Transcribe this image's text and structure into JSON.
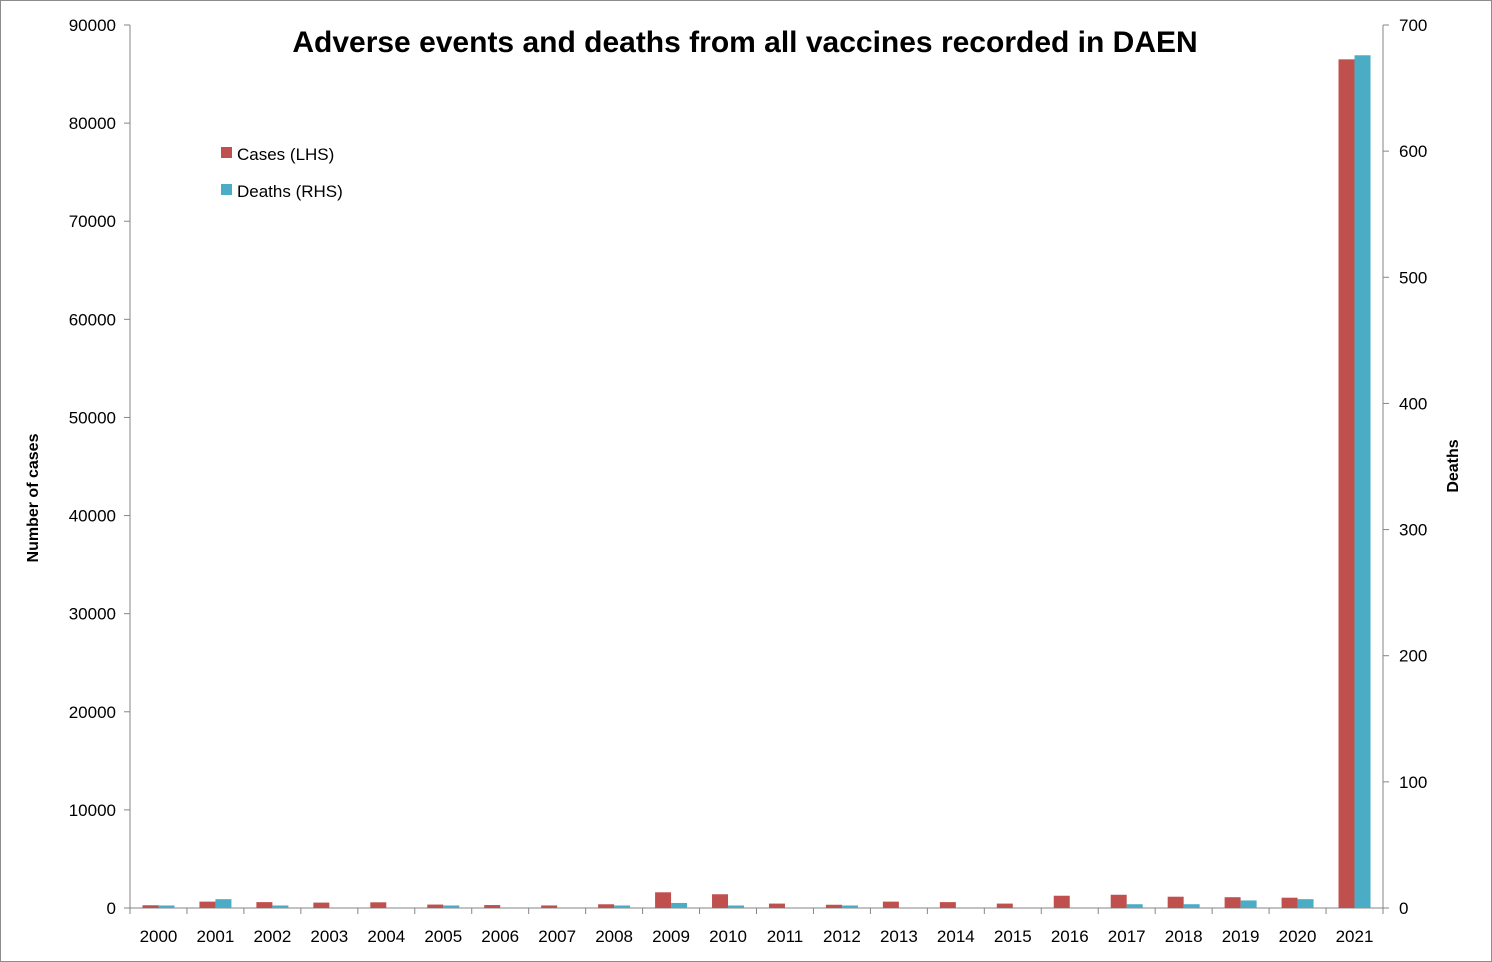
{
  "chart_data": {
    "type": "bar",
    "title": "Adverse events and deaths from all vaccines recorded in DAEN",
    "ylabel": "Number of cases",
    "y2label": "Deaths",
    "ylim": [
      0,
      90000
    ],
    "y2lim": [
      0,
      700
    ],
    "yticks": [
      0,
      10000,
      20000,
      30000,
      40000,
      50000,
      60000,
      70000,
      80000,
      90000
    ],
    "y2ticks": [
      0,
      100,
      200,
      300,
      400,
      500,
      600,
      700
    ],
    "categories": [
      "2000",
      "2001",
      "2002",
      "2003",
      "2004",
      "2005",
      "2006",
      "2007",
      "2008",
      "2009",
      "2010",
      "2011",
      "2012",
      "2013",
      "2014",
      "2015",
      "2016",
      "2017",
      "2018",
      "2019",
      "2020",
      "2021"
    ],
    "series": [
      {
        "name": "Cases (LHS)",
        "axis": "left",
        "color": "#c0504d",
        "values": [
          280,
          650,
          600,
          550,
          580,
          350,
          300,
          260,
          380,
          1600,
          1400,
          450,
          330,
          650,
          600,
          450,
          1250,
          1350,
          1150,
          1100,
          1050,
          86500
        ]
      },
      {
        "name": "Deaths (RHS)",
        "axis": "right",
        "color": "#4bacc6",
        "values": [
          2,
          7,
          2,
          0,
          0,
          2,
          0,
          0,
          2,
          4,
          2,
          0,
          2,
          0,
          0,
          0,
          0,
          3,
          3,
          6,
          7,
          676
        ]
      }
    ],
    "legend": "top-left",
    "grid": false
  }
}
